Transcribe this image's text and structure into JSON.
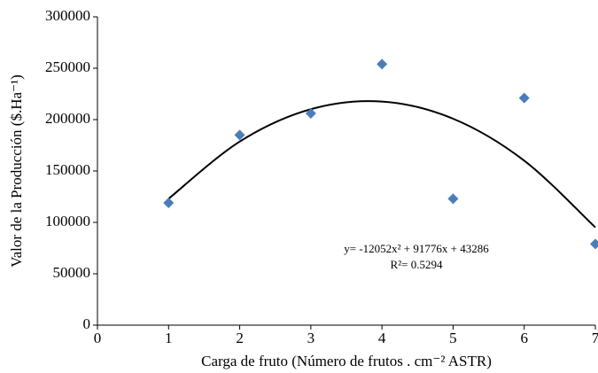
{
  "chart_data": {
    "type": "scatter",
    "x_label": "Carga de fruto (Número de frutos . cm⁻² ASTR)",
    "y_label": "Valor de la Producción ($.Ha⁻¹)",
    "series": [
      {
        "name": "Valor de la Producción",
        "color": "#4a7ebb",
        "x": [
          1,
          2,
          3,
          4,
          5,
          6,
          7
        ],
        "values": [
          119000,
          185000,
          206000,
          254000,
          123000,
          221000,
          79000
        ]
      }
    ],
    "trendline": {
      "color": "#000000",
      "x": [
        1,
        2,
        3,
        4,
        5,
        6,
        7
      ],
      "values": [
        123010,
        178630,
        210146,
        217558,
        200866,
        160070,
        95170
      ]
    },
    "annotations": [
      "y= -12052x² + 91776x + 43286",
      "R²= 0.5294"
    ],
    "xlim": [
      0,
      7
    ],
    "xticks": [
      0,
      1,
      2,
      3,
      4,
      5,
      6,
      7
    ],
    "ylim": [
      0,
      300000
    ],
    "yticks": [
      0,
      50000,
      100000,
      150000,
      200000,
      250000,
      300000
    ],
    "grid": false
  }
}
